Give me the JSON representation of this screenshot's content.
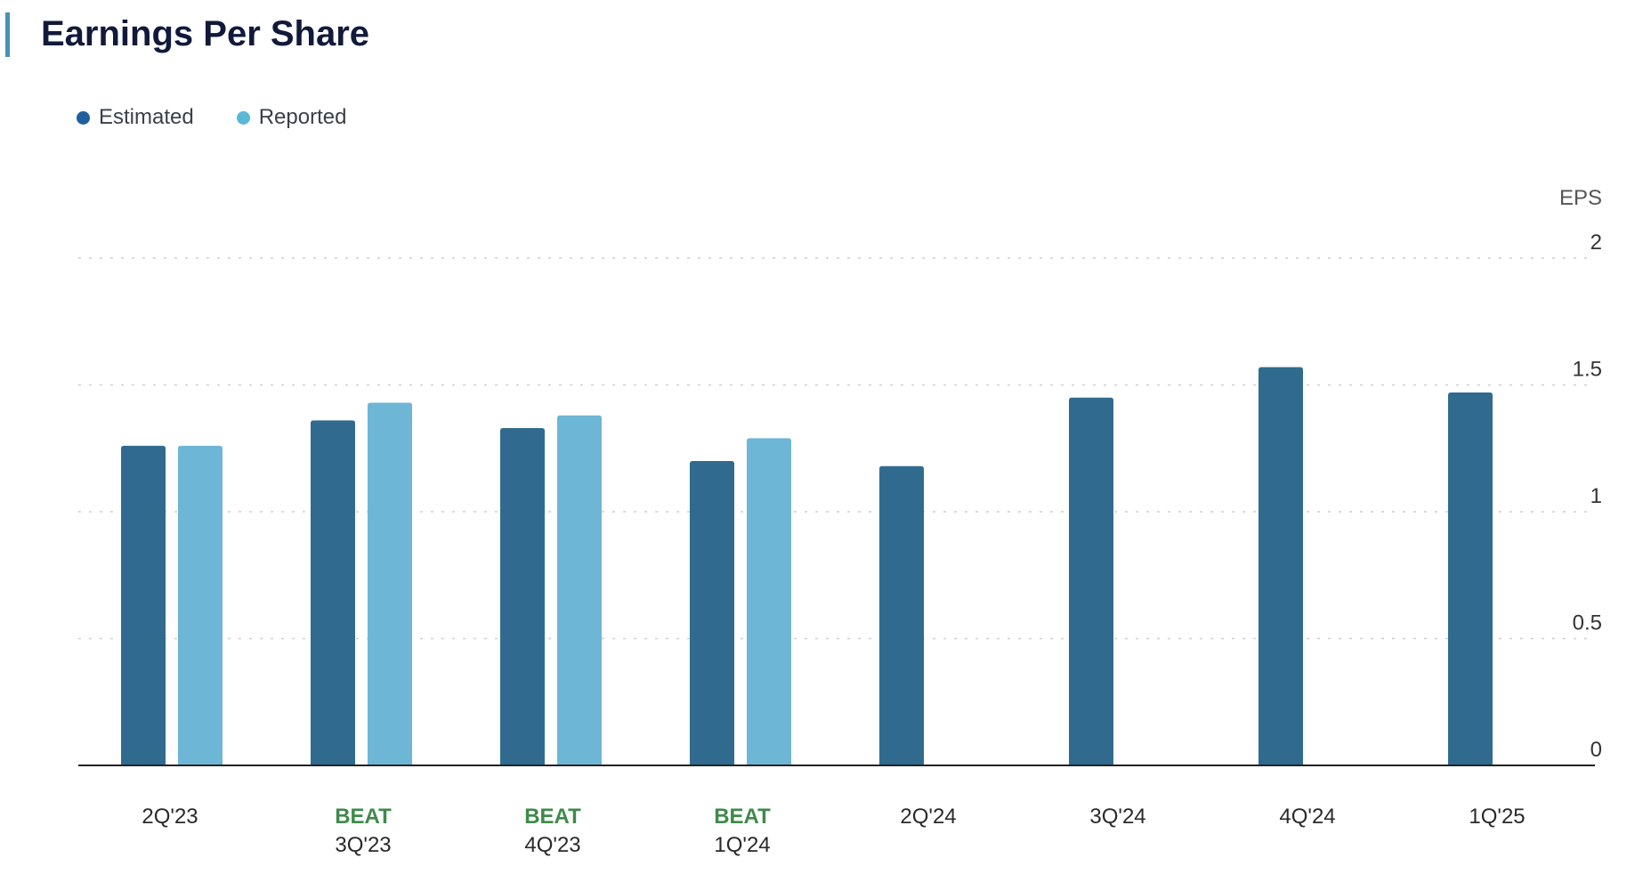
{
  "page": {
    "title": "Earnings Per Share"
  },
  "legend": {
    "estimated": {
      "label": "Estimated",
      "color": "#1f5fa0"
    },
    "reported": {
      "label": "Reported",
      "color": "#5ab8d6"
    }
  },
  "chart_data": {
    "type": "bar",
    "title": "Earnings Per Share",
    "ylabel": "EPS",
    "xlabel": "",
    "ylim": [
      0,
      2
    ],
    "yticks": [
      0,
      0.5,
      1,
      1.5,
      2
    ],
    "y_axis_position": "right",
    "grid": true,
    "legend_placement": "top-left",
    "categories": [
      "2Q'23",
      "3Q'23",
      "4Q'23",
      "1Q'24",
      "2Q'24",
      "3Q'24",
      "4Q'24",
      "1Q'25"
    ],
    "category_notes": [
      "",
      "BEAT",
      "BEAT",
      "BEAT",
      "",
      "",
      "",
      ""
    ],
    "series": [
      {
        "name": "Estimated",
        "color": "#306b8f",
        "values": [
          1.26,
          1.36,
          1.33,
          1.2,
          1.18,
          1.45,
          1.57,
          1.47
        ]
      },
      {
        "name": "Reported",
        "color": "#6db6d6",
        "values": [
          1.26,
          1.43,
          1.38,
          1.29,
          null,
          null,
          null,
          null
        ]
      }
    ]
  }
}
